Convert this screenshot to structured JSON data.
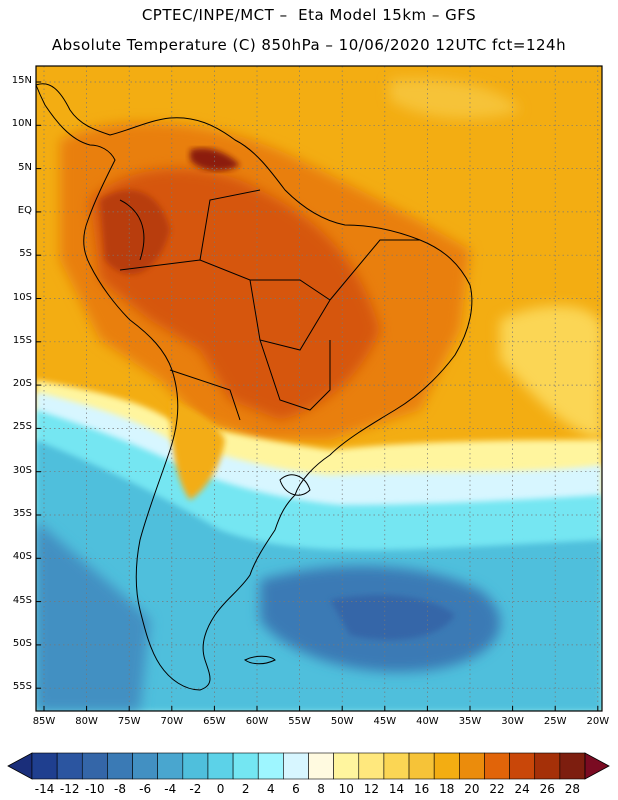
{
  "header": {
    "line1": "CPTEC/INPE/MCT –  Eta Model 15km – GFS",
    "line2": "Absolute Temperature (C) 850hPa – 10/06/2020 12UTC fct=124h"
  },
  "map": {
    "latitudes": [
      "15N",
      "10N",
      "5N",
      "EQ",
      "5S",
      "10S",
      "15S",
      "20S",
      "25S",
      "30S",
      "35S",
      "40S",
      "45S",
      "50S",
      "55S"
    ],
    "longitudes": [
      "85W",
      "80W",
      "75W",
      "70W",
      "65W",
      "60W",
      "55W",
      "50W",
      "45W",
      "40W",
      "35W",
      "30W",
      "25W",
      "20W"
    ],
    "grid": "dotted"
  },
  "colorbar": {
    "labels": [
      "-14",
      "-12",
      "-10",
      "-8",
      "-6",
      "-4",
      "-2",
      "0",
      "2",
      "4",
      "6",
      "8",
      "10",
      "12",
      "14",
      "16",
      "18",
      "20",
      "22",
      "24",
      "26",
      "28"
    ],
    "colors": [
      "#1f3f8f",
      "#2b55a0",
      "#3466a8",
      "#3a7ab5",
      "#4290c2",
      "#49a6cf",
      "#4fbfdc",
      "#5cd2e8",
      "#74e6f2",
      "#9ef6ff",
      "#d7f6ff",
      "#fffae0",
      "#fff59e",
      "#ffe87d",
      "#fbd654",
      "#f6c338",
      "#f3ad12",
      "#eb8c0c",
      "#e16409",
      "#c94709",
      "#a53008",
      "#7d1e0f"
    ],
    "under_color": "#1a2e7a",
    "over_color": "#7a0b22"
  }
}
